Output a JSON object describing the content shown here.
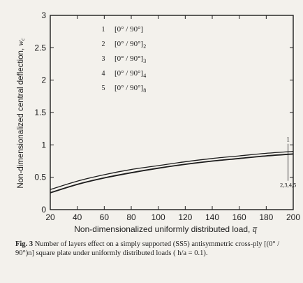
{
  "chart_data": {
    "type": "line",
    "title": "",
    "xlabel": "Non-dimensionalized uniformly distributed load, ",
    "xlabel_symbol": "q̅",
    "ylabel": "Non-dimensionalized central deflection, ",
    "ylabel_symbol": "w",
    "ylabel_symbol_sub": "c",
    "xlim": [
      20,
      200
    ],
    "ylim": [
      0,
      3
    ],
    "xticks": [
      20,
      40,
      60,
      80,
      100,
      120,
      140,
      160,
      180,
      200
    ],
    "yticks": [
      0,
      0.5,
      1,
      1.5,
      2,
      2.5,
      3
    ],
    "ytick_labels": [
      "0",
      "0.5",
      "1",
      "1.5",
      "2",
      "2.5",
      "3"
    ],
    "grid": false,
    "legend_position": "top-left",
    "legend": [
      {
        "num": "1",
        "text": "[0° / 90°]",
        "sub": ""
      },
      {
        "num": "2",
        "text": "[0° / 90°]",
        "sub": "2"
      },
      {
        "num": "3",
        "text": "[0° / 90°]",
        "sub": "3"
      },
      {
        "num": "4",
        "text": "[0° / 90°]",
        "sub": "4"
      },
      {
        "num": "5",
        "text": "[0° / 90°]",
        "sub": "8"
      }
    ],
    "series": [
      {
        "name": "1",
        "x": [
          20,
          40,
          60,
          80,
          100,
          120,
          140,
          160,
          180,
          200
        ],
        "y": [
          0.31,
          0.44,
          0.54,
          0.62,
          0.68,
          0.74,
          0.79,
          0.83,
          0.87,
          0.9
        ]
      },
      {
        "name": "2,3,4,5",
        "x": [
          20,
          40,
          60,
          80,
          100,
          120,
          140,
          160,
          180,
          200
        ],
        "y": [
          0.26,
          0.39,
          0.49,
          0.57,
          0.64,
          0.7,
          0.75,
          0.79,
          0.83,
          0.86
        ]
      }
    ],
    "annotations": [
      {
        "text": "1",
        "x": 190,
        "y": 1.05
      },
      {
        "text": "2,3,4,5",
        "x": 190,
        "y": 0.5
      }
    ]
  },
  "caption": {
    "label": "Fig. 3",
    "text": " Number of layers effect on a simply supported (SS5) antisymmetric cross-ply [(0° / 90°)n]  square plate  under uniformly distributed loads  ( h/a = 0.1)."
  },
  "colors": {
    "background": "#f3f1ec",
    "line": "#1c1c1c"
  }
}
